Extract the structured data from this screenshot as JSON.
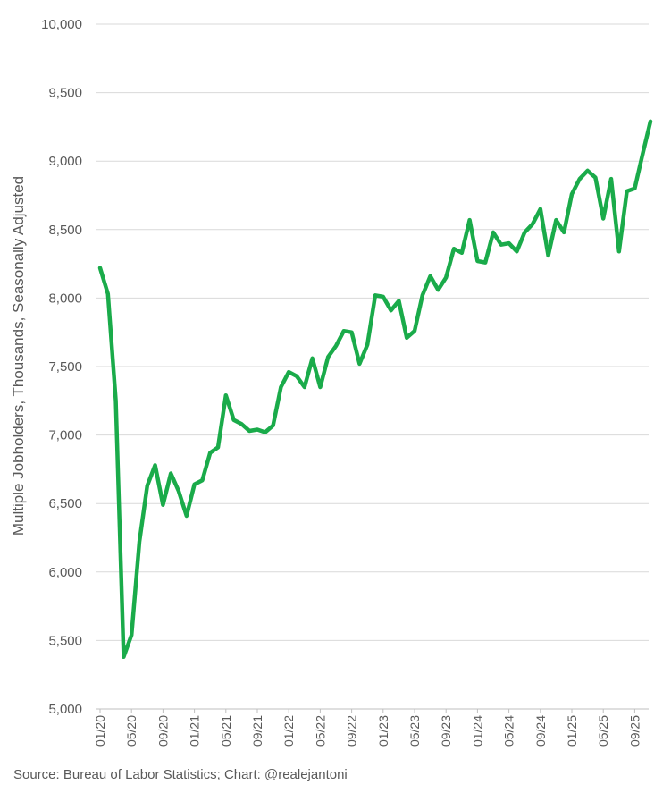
{
  "chart_data": {
    "type": "line",
    "title": "",
    "xlabel": "",
    "ylabel": "Multiple Jobholders, Thousands, Seasonally Adjusted",
    "source": "Source: Bureau of Labor Statistics; Chart: @realejantoni",
    "ylim": [
      5000,
      10000
    ],
    "grid": true,
    "legend": "none",
    "y_ticks": [
      {
        "value": 5000,
        "label": "5,000"
      },
      {
        "value": 5500,
        "label": "5,500"
      },
      {
        "value": 6000,
        "label": "6,000"
      },
      {
        "value": 6500,
        "label": "6,500"
      },
      {
        "value": 7000,
        "label": "7,000"
      },
      {
        "value": 7500,
        "label": "7,500"
      },
      {
        "value": 8000,
        "label": "8,000"
      },
      {
        "value": 8500,
        "label": "8,500"
      },
      {
        "value": 9000,
        "label": "9,000"
      },
      {
        "value": 9500,
        "label": "9,500"
      },
      {
        "value": 10000,
        "label": "10,000"
      }
    ],
    "x_ticks": [
      {
        "index": 0,
        "label": "01/20"
      },
      {
        "index": 4,
        "label": "05/20"
      },
      {
        "index": 8,
        "label": "09/20"
      },
      {
        "index": 12,
        "label": "01/21"
      },
      {
        "index": 16,
        "label": "05/21"
      },
      {
        "index": 20,
        "label": "09/21"
      },
      {
        "index": 24,
        "label": "01/22"
      },
      {
        "index": 28,
        "label": "05/22"
      },
      {
        "index": 32,
        "label": "09/22"
      },
      {
        "index": 36,
        "label": "01/23"
      },
      {
        "index": 40,
        "label": "05/23"
      },
      {
        "index": 44,
        "label": "09/23"
      },
      {
        "index": 48,
        "label": "01/24"
      },
      {
        "index": 52,
        "label": "05/24"
      },
      {
        "index": 56,
        "label": "09/24"
      },
      {
        "index": 60,
        "label": "01/25"
      },
      {
        "index": 64,
        "label": "05/25"
      },
      {
        "index": 68,
        "label": "09/25"
      }
    ],
    "series": [
      {
        "color": "#1aab4a",
        "values": [
          8220,
          8030,
          7250,
          5380,
          5540,
          6220,
          6630,
          6780,
          6490,
          6720,
          6590,
          6410,
          6640,
          6670,
          6870,
          6910,
          7290,
          7110,
          7080,
          7030,
          7040,
          7020,
          7070,
          7350,
          7460,
          7430,
          7350,
          7560,
          7350,
          7570,
          7650,
          7760,
          7750,
          7520,
          7660,
          8020,
          8010,
          7910,
          7980,
          7710,
          7760,
          8020,
          8160,
          8060,
          8150,
          8360,
          8330,
          8570,
          8270,
          8260,
          8480,
          8390,
          8400,
          8340,
          8480,
          8540,
          8650,
          8310,
          8570,
          8480,
          8760,
          8870,
          8930,
          8880,
          8580,
          8870,
          8340,
          8780,
          8800,
          9050,
          9290
        ]
      }
    ]
  }
}
